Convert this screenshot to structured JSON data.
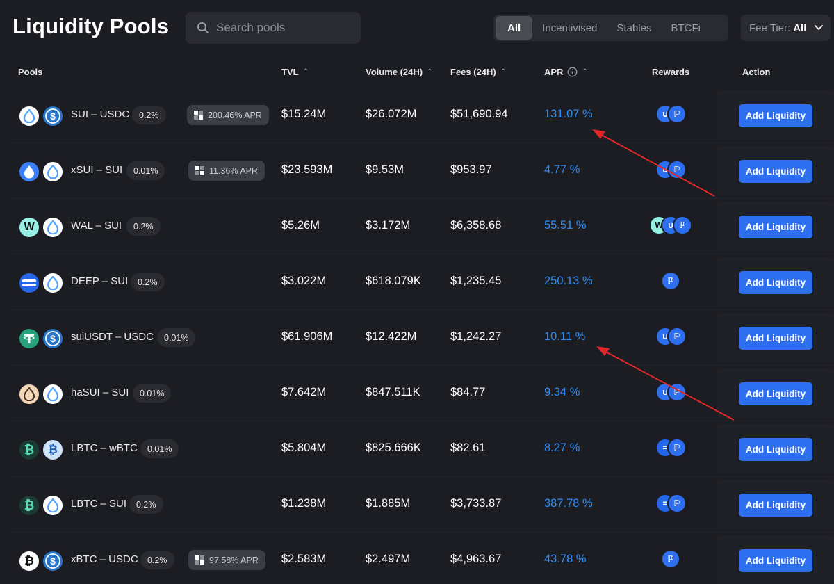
{
  "header": {
    "title": "Liquidity Pools",
    "search": {
      "placeholder": "Search pools",
      "value": ""
    },
    "filters": [
      "All",
      "Incentivised",
      "Stables",
      "BTCFi"
    ],
    "active_filter": "All",
    "fee_tier": {
      "label": "Fee Tier:",
      "value": "All"
    }
  },
  "table": {
    "columns": {
      "pools": "Pools",
      "tvl": "TVL",
      "volume": "Volume (24H)",
      "fees": "Fees (24H)",
      "apr": "APR",
      "rewards": "Rewards",
      "action": "Action"
    },
    "rows": [
      {
        "pair": "SUI – USDC",
        "fee": "0.2%",
        "incentive": "200.46% APR",
        "tvl": "$15.24M",
        "volume": "$26.072M",
        "fees": "$51,690.94",
        "apr": "131.07 %",
        "action": "Add Liquidity"
      },
      {
        "pair": "xSUI – SUI",
        "fee": "0.01%",
        "incentive": "11.36% APR",
        "tvl": "$23.593M",
        "volume": "$9.53M",
        "fees": "$953.97",
        "apr": "4.77 %",
        "action": "Add Liquidity"
      },
      {
        "pair": "WAL – SUI",
        "fee": "0.2%",
        "incentive": "",
        "tvl": "$5.26M",
        "volume": "$3.172M",
        "fees": "$6,358.68",
        "apr": "55.51 %",
        "action": "Add Liquidity"
      },
      {
        "pair": "DEEP – SUI",
        "fee": "0.2%",
        "incentive": "",
        "tvl": "$3.022M",
        "volume": "$618.079K",
        "fees": "$1,235.45",
        "apr": "250.13 %",
        "action": "Add Liquidity"
      },
      {
        "pair": "suiUSDT – USDC",
        "fee": "0.01%",
        "incentive": "",
        "tvl": "$61.906M",
        "volume": "$12.422M",
        "fees": "$1,242.27",
        "apr": "10.11 %",
        "action": "Add Liquidity"
      },
      {
        "pair": "haSUI – SUI",
        "fee": "0.01%",
        "incentive": "",
        "tvl": "$7.642M",
        "volume": "$847.511K",
        "fees": "$84.77",
        "apr": "9.34 %",
        "action": "Add Liquidity"
      },
      {
        "pair": "LBTC – wBTC",
        "fee": "0.01%",
        "incentive": "",
        "tvl": "$5.804M",
        "volume": "$825.666K",
        "fees": "$82.61",
        "apr": "8.27 %",
        "action": "Add Liquidity"
      },
      {
        "pair": "LBTC – SUI",
        "fee": "0.2%",
        "incentive": "",
        "tvl": "$1.238M",
        "volume": "$1.885M",
        "fees": "$3,733.87",
        "apr": "387.78 %",
        "action": "Add Liquidity"
      },
      {
        "pair": "xBTC – USDC",
        "fee": "0.2%",
        "incentive": "97.58% APR",
        "tvl": "$2.583M",
        "volume": "$2.497M",
        "fees": "$4,963.67",
        "apr": "43.78 %",
        "action": "Add Liquidity"
      }
    ]
  },
  "colors": {
    "accent": "#2e6ff0",
    "apr": "#2e8cf5",
    "background": "#1c1d22",
    "annotation_arrow": "#e0282a"
  }
}
